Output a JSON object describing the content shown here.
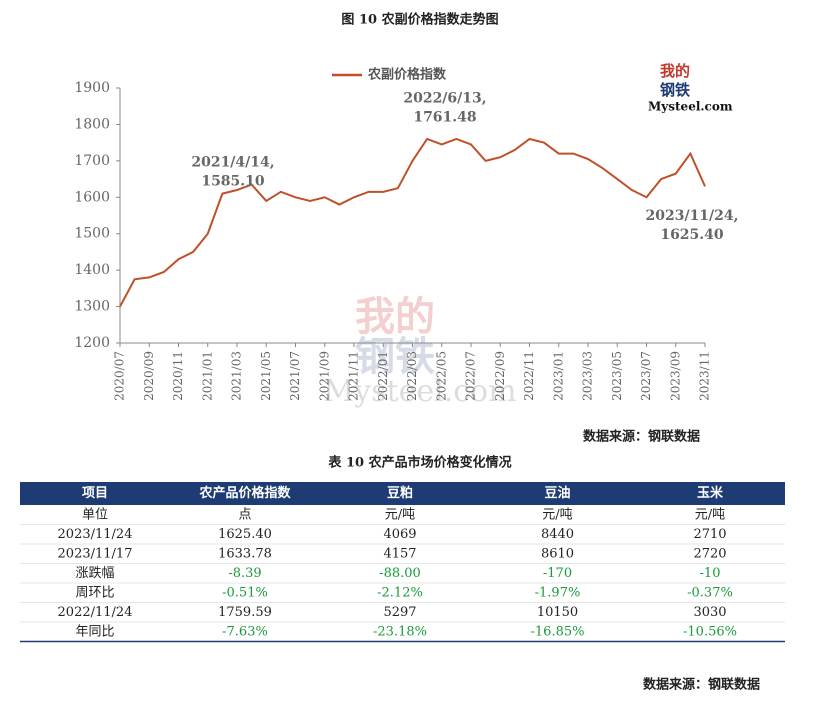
{
  "chart_data": {
    "type": "line",
    "title": "图 10 农副价格指数走势图",
    "x": [
      "2020/07",
      "2020/08",
      "2020/09",
      "2020/10",
      "2020/11",
      "2020/12",
      "2021/01",
      "2021/02",
      "2021/03",
      "2021/04",
      "2021/05",
      "2021/06",
      "2021/07",
      "2021/08",
      "2021/09",
      "2021/10",
      "2021/11",
      "2021/12",
      "2022/01",
      "2022/02",
      "2022/03",
      "2022/04",
      "2022/05",
      "2022/06",
      "2022/07",
      "2022/08",
      "2022/09",
      "2022/10",
      "2022/11",
      "2022/12",
      "2023/01",
      "2023/02",
      "2023/03",
      "2023/04",
      "2023/05",
      "2023/06",
      "2023/07",
      "2023/08",
      "2023/09",
      "2023/10",
      "2023/11"
    ],
    "series": [
      {
        "name": "农副价格指数",
        "color": "#c0502a",
        "values": [
          1300,
          1375,
          1380,
          1395,
          1430,
          1450,
          1500,
          1610,
          1620,
          1635,
          1590,
          1615,
          1600,
          1590,
          1600,
          1580,
          1600,
          1615,
          1615,
          1625,
          1700,
          1760,
          1745,
          1760,
          1745,
          1700,
          1710,
          1730,
          1760,
          1750,
          1720,
          1720,
          1705,
          1680,
          1650,
          1620,
          1600,
          1650,
          1665,
          1720,
          1630
        ]
      }
    ],
    "xticks": [
      "2020/07",
      "2020/09",
      "2020/11",
      "2021/01",
      "2021/03",
      "2021/05",
      "2021/07",
      "2021/09",
      "2021/11",
      "2022/01",
      "2022/03",
      "2022/05",
      "2022/07",
      "2022/09",
      "2022/11",
      "2023/01",
      "2023/03",
      "2023/05",
      "2023/07",
      "2023/09",
      "2023/11"
    ],
    "ylim": [
      1200,
      1900
    ],
    "yticks": [
      1200,
      1300,
      1400,
      1500,
      1600,
      1700,
      1800,
      1900
    ],
    "annotations": [
      {
        "text": "2021/4/14,",
        "value": 1585.1,
        "value_label": "1585.10"
      },
      {
        "text": "2022/6/13,",
        "value": 1761.48,
        "value_label": "1761.48"
      },
      {
        "text": "2023/11/24,",
        "value": 1625.4,
        "value_label": "1625.40"
      }
    ],
    "source": "数据来源：钢联数据"
  },
  "watermark": {
    "top": "我的",
    "bottom": "钢铁",
    "brand": "Mysteel.com"
  },
  "table": {
    "title": "表 10 农产品市场价格变化情况",
    "header": [
      "项目",
      "农产品价格指数",
      "豆粕",
      "豆油",
      "玉米"
    ],
    "rows": [
      [
        "单位",
        "点",
        "元/吨",
        "元/吨",
        "元/吨"
      ],
      [
        "2023/11/24",
        "1625.40",
        "4069",
        "8440",
        "2710"
      ],
      [
        "2023/11/17",
        "1633.78",
        "4157",
        "8610",
        "2720"
      ],
      [
        "涨跌幅",
        "-8.39",
        "-88.00",
        "-170",
        "-10"
      ],
      [
        "周环比",
        "-0.51%",
        "-2.12%",
        "-1.97%",
        "-0.37%"
      ],
      [
        "2022/11/24",
        "1759.59",
        "5297",
        "10150",
        "3030"
      ],
      [
        "年同比",
        "-7.63%",
        "-23.18%",
        "-16.85%",
        "-10.56%"
      ]
    ],
    "source": "数据来源：钢联数据"
  }
}
